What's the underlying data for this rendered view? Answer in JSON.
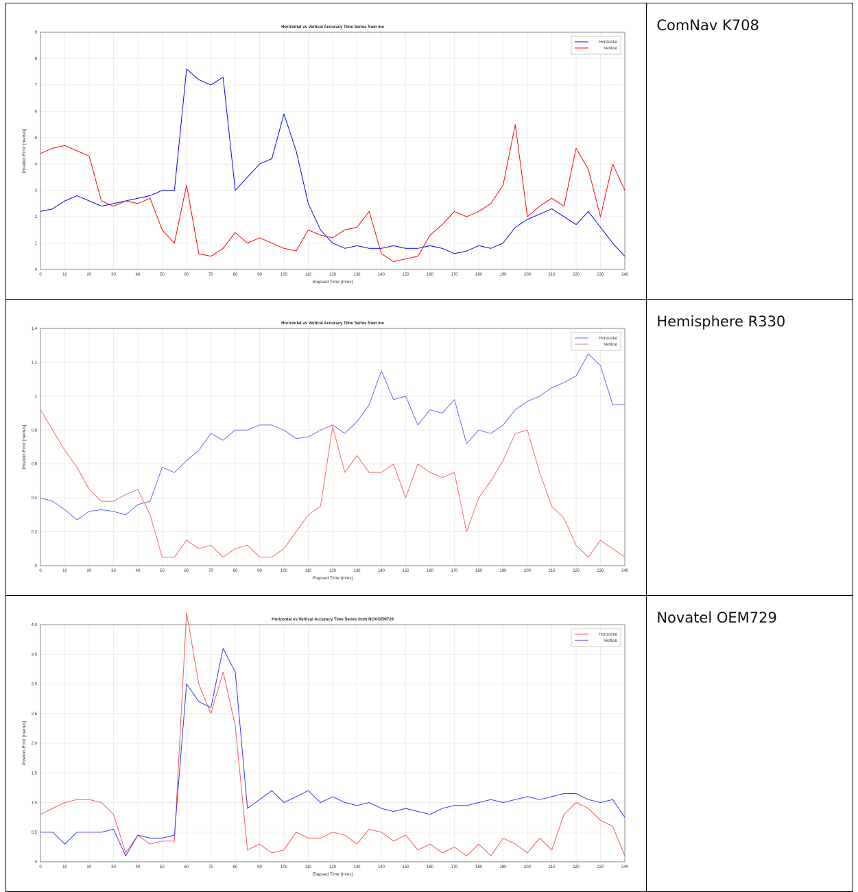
{
  "table": {
    "rows": [
      {
        "label": "ComNav K708"
      },
      {
        "label": "Hemisphere R330"
      },
      {
        "label": "Novatel OEM729"
      }
    ]
  },
  "chart_data": [
    {
      "type": "line",
      "title": "Horizontal vs Vertical Accuracy Time Series from me",
      "xlabel": "Elapsed Time [mins]",
      "ylabel": "Position Error [metres]",
      "x": [
        0,
        5,
        10,
        15,
        20,
        25,
        30,
        35,
        40,
        45,
        50,
        55,
        60,
        65,
        70,
        75,
        80,
        85,
        90,
        95,
        100,
        105,
        110,
        115,
        120,
        125,
        130,
        135,
        140,
        145,
        150,
        155,
        160,
        165,
        170,
        175,
        180,
        185,
        190,
        195,
        200,
        205,
        210,
        215,
        220,
        225,
        230,
        235,
        240
      ],
      "series": [
        {
          "name": "Horizontal",
          "color": "#0000ff",
          "values": [
            2.2,
            2.3,
            2.6,
            2.8,
            2.6,
            2.4,
            2.5,
            2.6,
            2.7,
            2.8,
            3.0,
            3.0,
            7.6,
            7.2,
            7.0,
            7.3,
            3.0,
            3.5,
            4.0,
            4.2,
            5.9,
            4.5,
            2.5,
            1.5,
            1.0,
            0.8,
            0.9,
            0.8,
            0.8,
            0.9,
            0.8,
            0.8,
            0.9,
            0.8,
            0.6,
            0.7,
            0.9,
            0.8,
            1.0,
            1.6,
            1.9,
            2.1,
            2.3,
            2.0,
            1.7,
            2.2,
            1.6,
            1.0,
            0.5
          ]
        },
        {
          "name": "Vertical",
          "color": "#ff0000",
          "values": [
            4.4,
            4.6,
            4.7,
            4.5,
            4.3,
            2.6,
            2.4,
            2.6,
            2.5,
            2.7,
            1.5,
            1.0,
            3.2,
            0.6,
            0.5,
            0.8,
            1.4,
            1.0,
            1.2,
            1.0,
            0.8,
            0.7,
            1.5,
            1.3,
            1.2,
            1.5,
            1.6,
            2.2,
            0.6,
            0.3,
            0.4,
            0.5,
            1.3,
            1.7,
            2.2,
            2.0,
            2.2,
            2.5,
            3.2,
            5.5,
            2.0,
            2.4,
            2.7,
            2.4,
            4.6,
            3.8,
            2.0,
            4.0,
            3.0
          ]
        }
      ],
      "xlim": [
        0,
        240
      ],
      "ylim": [
        0,
        9
      ],
      "xticks": [
        0,
        10,
        20,
        30,
        40,
        50,
        60,
        70,
        80,
        90,
        100,
        110,
        120,
        130,
        140,
        150,
        160,
        170,
        180,
        190,
        200,
        210,
        220,
        230,
        240
      ],
      "yticks": [
        0,
        1,
        2,
        3,
        4,
        5,
        6,
        7,
        8,
        9
      ],
      "grid": true,
      "legend": "upper right"
    },
    {
      "type": "line",
      "title": "Horizontal vs Vertical Accuracy Time Series from me",
      "xlabel": "Elapsed Time [mins]",
      "ylabel": "Position Error [metres]",
      "x": [
        0,
        5,
        10,
        15,
        20,
        25,
        30,
        35,
        40,
        45,
        50,
        55,
        60,
        65,
        70,
        75,
        80,
        85,
        90,
        95,
        100,
        105,
        110,
        115,
        120,
        125,
        130,
        135,
        140,
        145,
        150,
        155,
        160,
        165,
        170,
        175,
        180,
        185,
        190,
        195,
        200,
        205,
        210,
        215,
        220,
        225,
        230,
        235,
        240
      ],
      "series": [
        {
          "name": "Horizontal",
          "color": "#6666ff",
          "values": [
            0.4,
            0.38,
            0.33,
            0.27,
            0.32,
            0.33,
            0.32,
            0.3,
            0.36,
            0.38,
            0.58,
            0.55,
            0.62,
            0.68,
            0.78,
            0.74,
            0.8,
            0.8,
            0.83,
            0.83,
            0.8,
            0.75,
            0.76,
            0.8,
            0.83,
            0.78,
            0.85,
            0.95,
            1.15,
            0.98,
            1.0,
            0.83,
            0.92,
            0.9,
            0.98,
            0.72,
            0.8,
            0.78,
            0.83,
            0.92,
            0.97,
            1.0,
            1.05,
            1.08,
            1.12,
            1.25,
            1.18,
            0.95,
            0.95
          ]
        },
        {
          "name": "Vertical",
          "color": "#ff6666",
          "values": [
            0.92,
            0.8,
            0.68,
            0.58,
            0.45,
            0.38,
            0.38,
            0.42,
            0.45,
            0.3,
            0.05,
            0.05,
            0.15,
            0.1,
            0.12,
            0.05,
            0.1,
            0.12,
            0.05,
            0.05,
            0.1,
            0.2,
            0.3,
            0.35,
            0.82,
            0.55,
            0.65,
            0.55,
            0.55,
            0.6,
            0.4,
            0.6,
            0.55,
            0.52,
            0.55,
            0.2,
            0.4,
            0.5,
            0.62,
            0.78,
            0.8,
            0.55,
            0.35,
            0.28,
            0.12,
            0.05,
            0.15,
            0.1,
            0.05
          ]
        }
      ],
      "xlim": [
        0,
        240
      ],
      "ylim": [
        0,
        1.4
      ],
      "xticks": [
        0,
        10,
        20,
        30,
        40,
        50,
        60,
        70,
        80,
        90,
        100,
        110,
        120,
        130,
        140,
        150,
        160,
        170,
        180,
        190,
        200,
        210,
        220,
        230,
        240
      ],
      "yticks": [
        0,
        0.2,
        0.4,
        0.6,
        0.8,
        1,
        1.2,
        1.4
      ],
      "grid": true,
      "legend": "upper right"
    },
    {
      "type": "line",
      "title": "Horizontal vs Vertical Accuracy Time Series from NOVOEM729",
      "xlabel": "Elapsed Time [mins]",
      "ylabel": "Position Error [metres]",
      "x": [
        0,
        5,
        10,
        15,
        20,
        25,
        30,
        35,
        40,
        45,
        50,
        55,
        60,
        65,
        70,
        75,
        80,
        85,
        90,
        95,
        100,
        105,
        110,
        115,
        120,
        125,
        130,
        135,
        140,
        145,
        150,
        155,
        160,
        165,
        170,
        175,
        180,
        185,
        190,
        195,
        200,
        205,
        210,
        215,
        220,
        225,
        230,
        235,
        240
      ],
      "series": [
        {
          "name": "Horizontal",
          "color": "#ff5555",
          "values": [
            0.8,
            0.9,
            1.0,
            1.05,
            1.05,
            1.0,
            0.8,
            0.15,
            0.45,
            0.3,
            0.35,
            0.35,
            4.2,
            3.0,
            2.5,
            3.2,
            2.3,
            0.2,
            0.3,
            0.15,
            0.2,
            0.5,
            0.4,
            0.4,
            0.5,
            0.45,
            0.3,
            0.55,
            0.5,
            0.35,
            0.45,
            0.2,
            0.3,
            0.15,
            0.25,
            0.1,
            0.3,
            0.1,
            0.4,
            0.3,
            0.15,
            0.4,
            0.2,
            0.8,
            1.0,
            0.9,
            0.7,
            0.6,
            0.1
          ]
        },
        {
          "name": "Vertical",
          "color": "#3333ff",
          "values": [
            0.5,
            0.5,
            0.3,
            0.5,
            0.5,
            0.5,
            0.55,
            0.1,
            0.45,
            0.4,
            0.4,
            0.45,
            3.0,
            2.7,
            2.6,
            3.6,
            3.2,
            0.9,
            1.05,
            1.2,
            1.0,
            1.1,
            1.2,
            1.0,
            1.1,
            1.0,
            0.95,
            1.0,
            0.9,
            0.85,
            0.9,
            0.85,
            0.8,
            0.9,
            0.95,
            0.95,
            1.0,
            1.05,
            1.0,
            1.05,
            1.1,
            1.05,
            1.1,
            1.15,
            1.15,
            1.05,
            1.0,
            1.05,
            0.75
          ]
        }
      ],
      "xlim": [
        0,
        240
      ],
      "ylim": [
        0,
        4
      ],
      "xticks": [
        0,
        10,
        20,
        30,
        40,
        50,
        60,
        70,
        80,
        90,
        100,
        110,
        120,
        130,
        140,
        150,
        160,
        170,
        180,
        190,
        200,
        210,
        220,
        230,
        240
      ],
      "yticks": [
        0,
        0.5,
        {
          "value": 1,
          "label": "1.0"
        },
        1.5,
        {
          "value": 2,
          "label": "2.0"
        },
        2.5,
        {
          "value": 3,
          "label": "3.0"
        },
        3.5,
        {
          "value": 4,
          "label": "4.0"
        }
      ],
      "grid": true,
      "legend": "upper right"
    }
  ]
}
